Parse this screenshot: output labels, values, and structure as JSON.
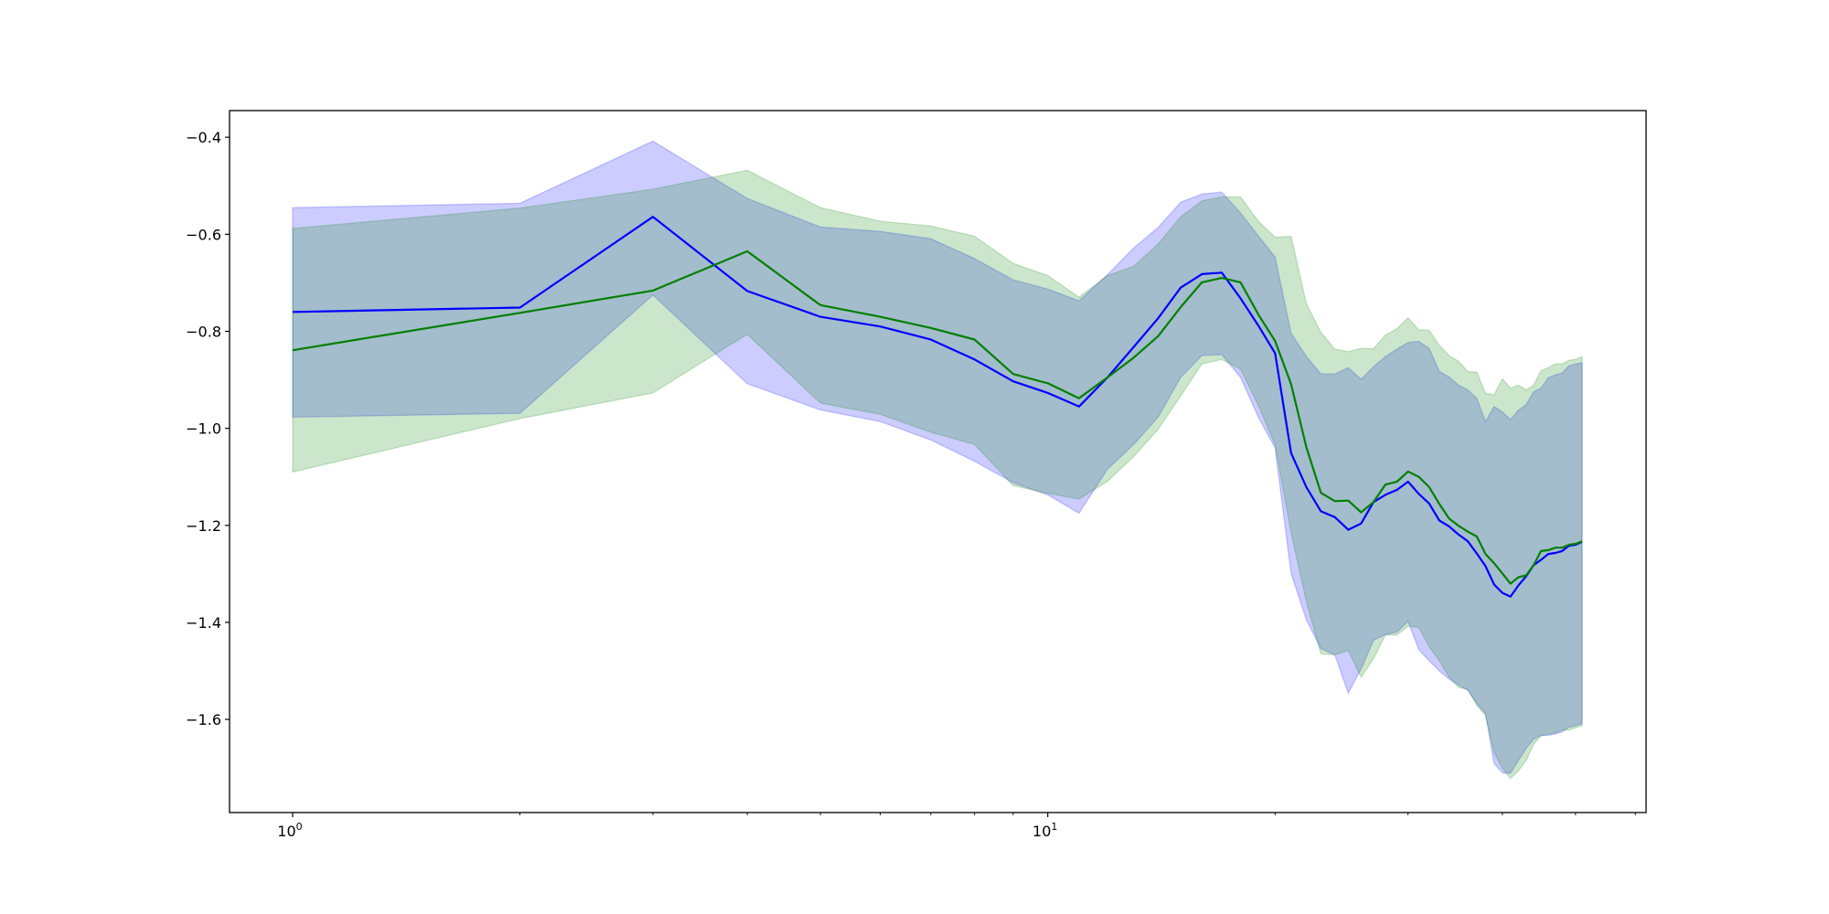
{
  "chart_data": {
    "type": "line",
    "title": "",
    "xlabel": "",
    "ylabel": "",
    "xscale": "log",
    "xlim": [
      0.825,
      62
    ],
    "ylim": [
      -1.792,
      -0.345
    ],
    "grid": false,
    "legend": "none",
    "x_tick_labels": [
      {
        "value": 1,
        "base": "10",
        "exp": "0"
      },
      {
        "value": 10,
        "base": "10",
        "exp": "1"
      }
    ],
    "x_minor_ticks": [
      2,
      3,
      4,
      5,
      6,
      7,
      8,
      9,
      20,
      30,
      40,
      50,
      60
    ],
    "y_ticks": [
      -0.4,
      -0.6,
      -0.8,
      -1.0,
      -1.2,
      -1.4,
      -1.6
    ],
    "y_tick_labels": [
      "−0.4",
      "−0.6",
      "−0.8",
      "−1.0",
      "−1.2",
      "−1.4",
      "−1.6"
    ],
    "x": [
      1,
      2,
      3,
      4,
      5,
      6,
      7,
      8,
      9,
      10,
      11,
      12,
      13,
      14,
      15,
      16,
      17,
      18,
      19,
      20,
      21,
      22,
      23,
      24,
      25,
      26,
      27,
      28,
      29,
      30,
      31,
      32,
      33,
      34,
      35,
      36,
      37,
      38,
      39,
      40,
      41,
      42,
      43,
      44,
      45,
      46,
      47,
      48,
      49,
      50,
      51
    ],
    "series": [
      {
        "name": "blue",
        "color": "#0000ff",
        "mean": [
          -0.76,
          -0.751,
          -0.564,
          -0.717,
          -0.77,
          -0.79,
          -0.817,
          -0.858,
          -0.903,
          -0.927,
          -0.955,
          -0.895,
          -0.832,
          -0.773,
          -0.71,
          -0.682,
          -0.679,
          -0.732,
          -0.788,
          -0.845,
          -1.051,
          -1.121,
          -1.171,
          -1.183,
          -1.209,
          -1.196,
          -1.152,
          -1.137,
          -1.127,
          -1.11,
          -1.135,
          -1.155,
          -1.19,
          -1.202,
          -1.219,
          -1.233,
          -1.258,
          -1.284,
          -1.322,
          -1.339,
          -1.347,
          -1.324,
          -1.305,
          -1.282,
          -1.271,
          -1.259,
          -1.257,
          -1.253,
          -1.242,
          -1.24,
          -1.234
        ],
        "upper": [
          -0.545,
          -0.536,
          -0.408,
          -0.526,
          -0.585,
          -0.594,
          -0.609,
          -0.65,
          -0.694,
          -0.713,
          -0.737,
          -0.683,
          -0.628,
          -0.586,
          -0.534,
          -0.517,
          -0.513,
          -0.556,
          -0.603,
          -0.647,
          -0.804,
          -0.852,
          -0.888,
          -0.888,
          -0.875,
          -0.899,
          -0.873,
          -0.852,
          -0.837,
          -0.823,
          -0.821,
          -0.835,
          -0.883,
          -0.894,
          -0.911,
          -0.921,
          -0.938,
          -0.986,
          -0.955,
          -0.966,
          -0.982,
          -0.963,
          -0.951,
          -0.925,
          -0.917,
          -0.896,
          -0.89,
          -0.886,
          -0.871,
          -0.867,
          -0.865
        ],
        "lower": [
          -0.977,
          -0.969,
          -0.725,
          -0.908,
          -0.962,
          -0.986,
          -1.024,
          -1.068,
          -1.112,
          -1.137,
          -1.175,
          -1.084,
          -1.033,
          -0.977,
          -0.895,
          -0.85,
          -0.848,
          -0.895,
          -0.977,
          -1.04,
          -1.299,
          -1.395,
          -1.454,
          -1.467,
          -1.546,
          -1.496,
          -1.437,
          -1.425,
          -1.42,
          -1.398,
          -1.456,
          -1.479,
          -1.5,
          -1.517,
          -1.529,
          -1.54,
          -1.567,
          -1.588,
          -1.691,
          -1.71,
          -1.711,
          -1.685,
          -1.66,
          -1.641,
          -1.633,
          -1.633,
          -1.63,
          -1.626,
          -1.616,
          -1.613,
          -1.609
        ]
      },
      {
        "name": "green",
        "color": "#008000",
        "mean": [
          -0.839,
          -0.762,
          -0.716,
          -0.635,
          -0.746,
          -0.77,
          -0.793,
          -0.817,
          -0.888,
          -0.907,
          -0.938,
          -0.895,
          -0.854,
          -0.81,
          -0.75,
          -0.699,
          -0.69,
          -0.699,
          -0.765,
          -0.82,
          -0.909,
          -1.039,
          -1.133,
          -1.15,
          -1.149,
          -1.173,
          -1.152,
          -1.116,
          -1.11,
          -1.089,
          -1.1,
          -1.121,
          -1.156,
          -1.186,
          -1.201,
          -1.213,
          -1.223,
          -1.259,
          -1.278,
          -1.299,
          -1.32,
          -1.307,
          -1.303,
          -1.282,
          -1.253,
          -1.251,
          -1.246,
          -1.246,
          -1.24,
          -1.238,
          -1.233
        ],
        "upper": [
          -0.588,
          -0.546,
          -0.507,
          -0.468,
          -0.545,
          -0.573,
          -0.583,
          -0.604,
          -0.66,
          -0.685,
          -0.73,
          -0.685,
          -0.666,
          -0.62,
          -0.564,
          -0.531,
          -0.523,
          -0.523,
          -0.573,
          -0.606,
          -0.604,
          -0.743,
          -0.802,
          -0.837,
          -0.842,
          -0.835,
          -0.836,
          -0.808,
          -0.795,
          -0.772,
          -0.797,
          -0.798,
          -0.829,
          -0.85,
          -0.862,
          -0.883,
          -0.884,
          -0.928,
          -0.931,
          -0.898,
          -0.917,
          -0.911,
          -0.921,
          -0.911,
          -0.881,
          -0.875,
          -0.867,
          -0.867,
          -0.86,
          -0.858,
          -0.852
        ],
        "lower": [
          -1.09,
          -0.98,
          -0.927,
          -0.806,
          -0.948,
          -0.971,
          -1.008,
          -1.033,
          -1.118,
          -1.134,
          -1.146,
          -1.109,
          -1.058,
          -1.002,
          -0.933,
          -0.867,
          -0.858,
          -0.878,
          -0.952,
          -1.034,
          -1.215,
          -1.357,
          -1.465,
          -1.467,
          -1.458,
          -1.513,
          -1.475,
          -1.426,
          -1.426,
          -1.408,
          -1.41,
          -1.45,
          -1.479,
          -1.513,
          -1.534,
          -1.538,
          -1.571,
          -1.592,
          -1.668,
          -1.701,
          -1.722,
          -1.706,
          -1.685,
          -1.651,
          -1.634,
          -1.63,
          -1.628,
          -1.622,
          -1.622,
          -1.617,
          -1.613
        ]
      }
    ]
  }
}
